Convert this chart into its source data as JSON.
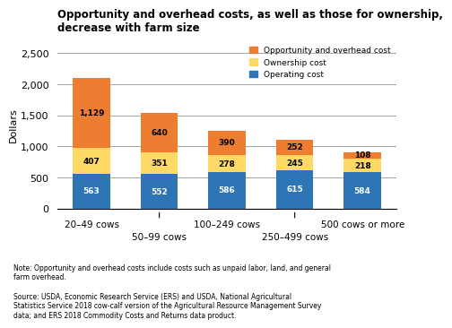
{
  "title": "Opportunity and overhead costs, as well as those for ownership,\ndecrease with farm size",
  "ylabel": "Dollars",
  "categories": [
    "20–49 cows",
    "50–99 cows",
    "100–249 cows",
    "250–499 cows",
    "500 cows or more"
  ],
  "operating_cost": [
    563,
    552,
    586,
    615,
    584
  ],
  "ownership_cost": [
    407,
    351,
    278,
    245,
    218
  ],
  "opportunity_cost": [
    1129,
    640,
    390,
    252,
    108
  ],
  "operating_color": "#2E75B6",
  "ownership_color": "#FFD966",
  "opportunity_color": "#ED7D31",
  "ylim": [
    0,
    2700
  ],
  "yticks": [
    0,
    500,
    1000,
    1500,
    2000,
    2500
  ],
  "note": "Note: Opportunity and overhead costs include costs such as unpaid labor, land, and general\nfarm overhead.",
  "source": "Source: USDA, Economic Research Service (ERS) and USDA, National Agricultural\nStatistics Service 2018 cow-calf version of the Agricultural Resource Management Survey\ndata; and ERS 2018 Commodity Costs and Returns data product.",
  "legend_labels": [
    "Opportunity and overhead cost",
    "Ownership cost",
    "Operating cost"
  ],
  "bar_width": 0.55
}
